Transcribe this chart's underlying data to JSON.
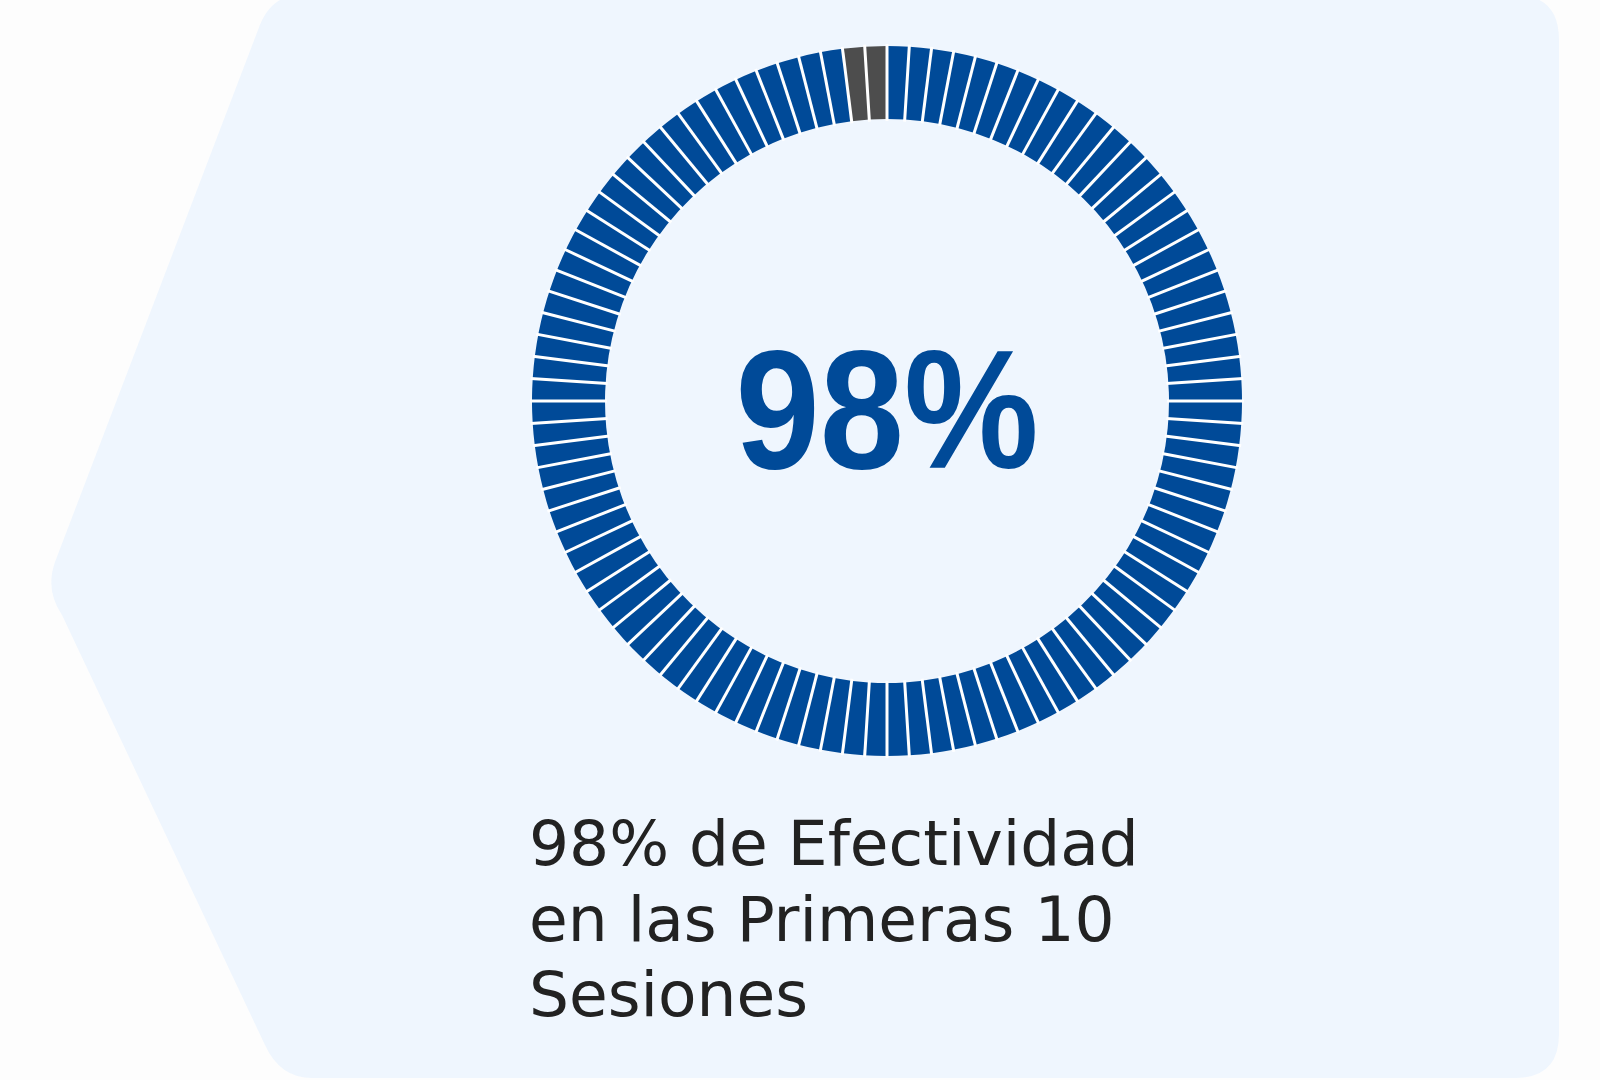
{
  "chart_data": {
    "type": "donut",
    "title": "98% de Efectividad en las Primeras 10 Sesiones",
    "categories": [
      null,
      null
    ],
    "values": [
      98,
      2
    ],
    "colors": [
      "#004a98",
      "#4d4d4d"
    ],
    "annotations": [
      "98%"
    ]
  }
}
